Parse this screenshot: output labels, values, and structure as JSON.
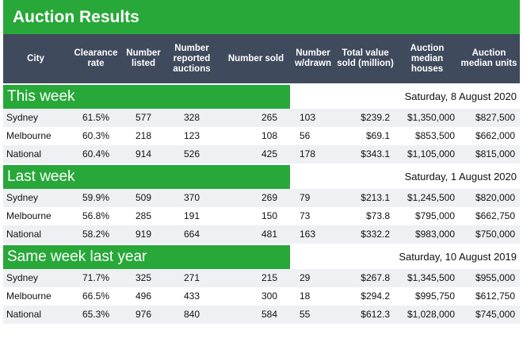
{
  "title": "Auction Results",
  "headers": [
    "City",
    "Clearance rate",
    "Number listed",
    "Number reported auctions",
    "Number sold",
    "Number w/drawn",
    "Total value sold (million)",
    "Auction median houses",
    "Auction median units"
  ],
  "sections": [
    {
      "label": "This week",
      "date": "Saturday, 8 August 2020",
      "rows": [
        [
          "Sydney",
          "61.5%",
          "577",
          "328",
          "265",
          "103",
          "$239.2",
          "$1,350,000",
          "$827,500"
        ],
        [
          "Melbourne",
          "60.3%",
          "218",
          "123",
          "108",
          "56",
          "$69.1",
          "$853,500",
          "$662,000"
        ],
        [
          "National",
          "60.4%",
          "914",
          "526",
          "425",
          "178",
          "$343.1",
          "$1,105,000",
          "$815,000"
        ]
      ]
    },
    {
      "label": "Last week",
      "date": "Saturday, 1 August 2020",
      "rows": [
        [
          "Sydney",
          "59.9%",
          "509",
          "370",
          "269",
          "79",
          "$213.1",
          "$1,245,500",
          "$820,000"
        ],
        [
          "Melbourne",
          "56.8%",
          "285",
          "191",
          "150",
          "73",
          "$73.8",
          "$795,000",
          "$662,750"
        ],
        [
          "National",
          "58.2%",
          "919",
          "664",
          "481",
          "163",
          "$332.2",
          "$983,000",
          "$750,000"
        ]
      ]
    },
    {
      "label": "Same week last year",
      "date": "Saturday, 10 August 2019",
      "rows": [
        [
          "Sydney",
          "71.7%",
          "325",
          "271",
          "215",
          "29",
          "$267.8",
          "$1,345,500",
          "$955,000"
        ],
        [
          "Melbourne",
          "66.5%",
          "496",
          "433",
          "300",
          "18",
          "$294.2",
          "$995,750",
          "$612,750"
        ],
        [
          "National",
          "65.3%",
          "976",
          "840",
          "584",
          "55",
          "$612.3",
          "$1,028,000",
          "$745,000"
        ]
      ]
    }
  ]
}
